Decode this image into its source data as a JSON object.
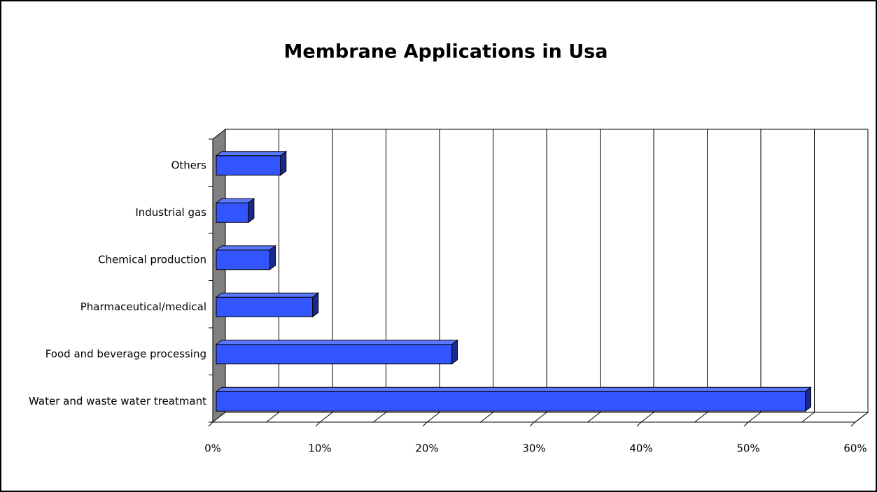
{
  "chart_data": {
    "type": "bar",
    "orientation": "horizontal",
    "title": "Membrane Applications in Usa",
    "categories": [
      "Water and waste water treatmant",
      "Food and beverage processing",
      "Pharmaceutical/medical",
      "Chemical production",
      "Industrial gas",
      "Others"
    ],
    "values": [
      55,
      22,
      9,
      5,
      3,
      6
    ],
    "color": "#3355ff",
    "xlim": [
      0,
      60
    ],
    "xticks": [
      {
        "value": 0,
        "label": "0%"
      },
      {
        "value": 10,
        "label": "10%"
      },
      {
        "value": 20,
        "label": "20%"
      },
      {
        "value": 30,
        "label": "30%"
      },
      {
        "value": 40,
        "label": "40%"
      },
      {
        "value": 50,
        "label": "50%"
      },
      {
        "value": 60,
        "label": "60%"
      }
    ],
    "grid": true
  }
}
